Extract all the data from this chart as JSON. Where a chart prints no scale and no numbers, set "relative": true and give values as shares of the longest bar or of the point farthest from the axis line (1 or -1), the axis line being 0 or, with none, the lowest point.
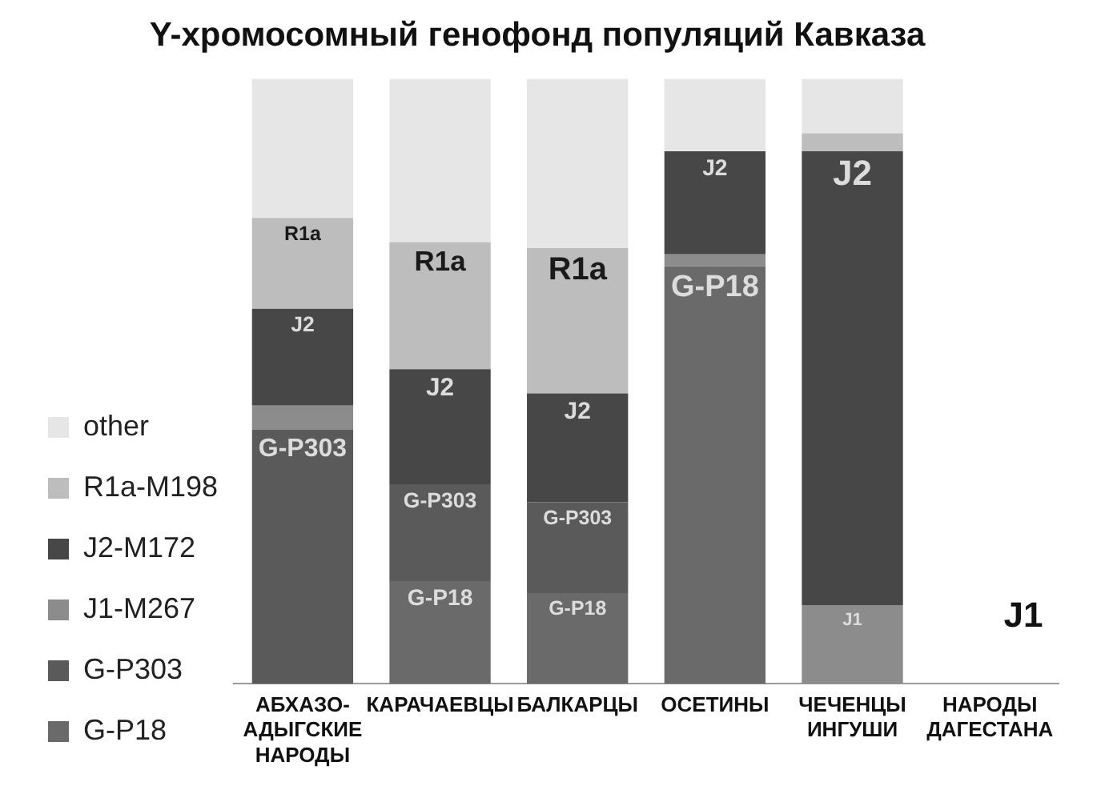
{
  "chart_data": {
    "type": "bar",
    "title": "Y-хромосомный генофонд популяций Кавказа",
    "categories": [
      "АБХАЗО-АДЫГСКИЕ НАРОДЫ",
      "КАРАЧАЕВЦЫ",
      "БАЛКАРЦЫ",
      "ОСЕТИНЫ",
      "ЧЕЧЕНЦЫ ИНГУШИ",
      "НАРОДЫ ДАГЕСТАНА"
    ],
    "stacked": true,
    "relative": true,
    "grid": false,
    "legend": "bottom left",
    "series": [
      {
        "name": "G-P18",
        "color": "#6a6a6a",
        "values": [
          null,
          0.17,
          0.15,
          0.69,
          null,
          null
        ]
      },
      {
        "name": "G-P303",
        "color": "#5a5a5a",
        "values": [
          0.42,
          0.16,
          0.15,
          null,
          null,
          null
        ]
      },
      {
        "name": "J1-M267",
        "color": "#8c8c8c",
        "values": [
          0.04,
          null,
          null,
          0.02,
          0.13,
          null
        ]
      },
      {
        "name": "J2-M172",
        "color": "#474747",
        "values": [
          0.16,
          0.19,
          0.18,
          0.17,
          0.75,
          null
        ]
      },
      {
        "name": "R1a-M198",
        "color": "#bdbdbd",
        "values": [
          0.15,
          0.21,
          0.24,
          null,
          0.03,
          null
        ]
      },
      {
        "name": "other",
        "color": "#e6e6e6",
        "values": [
          0.23,
          0.27,
          0.28,
          0.12,
          0.09,
          null
        ]
      }
    ],
    "annotations": [
      {
        "text": "R1a",
        "x": "АБХАЗО-АДЫГСКИЕ НАРОДЫ",
        "y": 0.77
      },
      {
        "text": "J2",
        "x": "АБХАЗО-АДЫГСКИЕ НАРОДЫ",
        "y": 0.62
      },
      {
        "text": "G-P303",
        "x": "АБХАЗО-АДЫГСКИЕ НАРОДЫ",
        "y": 0.42
      },
      {
        "text": "R1a",
        "x": "КАРАЧАЕВЦЫ",
        "y": 0.73
      },
      {
        "text": "J2",
        "x": "КАРАЧАЕВЦЫ",
        "y": 0.52
      },
      {
        "text": "G-P303",
        "x": "КАРАЧАЕВЦЫ",
        "y": 0.33
      },
      {
        "text": "G-P18",
        "x": "КАРАЧАЕВЦЫ",
        "y": 0.17
      },
      {
        "text": "R1a",
        "x": "БАЛКАРЦЫ",
        "y": 0.72
      },
      {
        "text": "J2",
        "x": "БАЛКАРЦЫ",
        "y": 0.48
      },
      {
        "text": "G-P303",
        "x": "БАЛКАРЦЫ",
        "y": 0.3
      },
      {
        "text": "G-P18",
        "x": "БАЛКАРЦЫ",
        "y": 0.15
      },
      {
        "text": "J2",
        "x": "ОСЕТИНЫ",
        "y": 0.88
      },
      {
        "text": "G-P18",
        "x": "ОСЕТИНЫ",
        "y": 0.69
      },
      {
        "text": "J2",
        "x": "ЧЕЧЕНЦЫ ИНГУШИ",
        "y": 0.88
      },
      {
        "text": "J1",
        "x": "ЧЕЧЕНЦЫ ИНГУШИ",
        "y": 0.13
      },
      "J1"
    ]
  }
}
